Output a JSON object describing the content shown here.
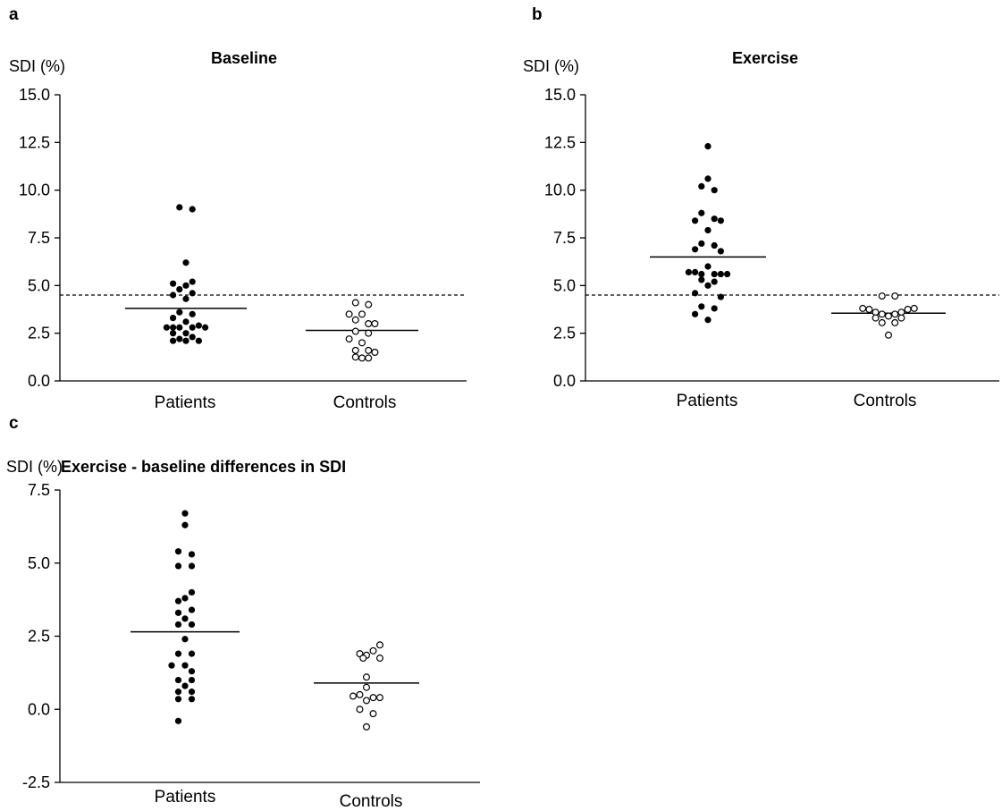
{
  "chart_data": [
    {
      "type": "scatter",
      "panel": "a",
      "title": "Baseline",
      "ylabel": "SDI (%)",
      "xlabel": "",
      "ylim": [
        0,
        15
      ],
      "yticks": [
        "0.0",
        "2.5",
        "5.0",
        "7.5",
        "10.0",
        "12.5",
        "15.0"
      ],
      "categories": [
        "Patients",
        "Controls"
      ],
      "reference_line": 4.5,
      "series": [
        {
          "category": "Patients",
          "marker": "filled",
          "mean": 3.8,
          "points": [
            {
              "off": -1,
              "y": 9.1
            },
            {
              "off": 1,
              "y": 9.0
            },
            {
              "off": 0,
              "y": 6.2
            },
            {
              "off": 1,
              "y": 5.2
            },
            {
              "off": -2,
              "y": 5.1
            },
            {
              "off": 0,
              "y": 5.0
            },
            {
              "off": -1,
              "y": 4.8
            },
            {
              "off": 1,
              "y": 4.6
            },
            {
              "off": -2,
              "y": 4.5
            },
            {
              "off": 0,
              "y": 4.3
            },
            {
              "off": -1,
              "y": 3.6
            },
            {
              "off": 1,
              "y": 3.5
            },
            {
              "off": -2,
              "y": 3.3
            },
            {
              "off": 0,
              "y": 3.1
            },
            {
              "off": 2,
              "y": 2.9
            },
            {
              "off": -3,
              "y": 2.8
            },
            {
              "off": -2,
              "y": 2.8
            },
            {
              "off": -1,
              "y": 2.8
            },
            {
              "off": 1,
              "y": 2.8
            },
            {
              "off": 3,
              "y": 2.8
            },
            {
              "off": -2,
              "y": 2.5
            },
            {
              "off": 0,
              "y": 2.5
            },
            {
              "off": 1,
              "y": 2.3
            },
            {
              "off": -1,
              "y": 2.2
            },
            {
              "off": -2,
              "y": 2.1
            },
            {
              "off": 0,
              "y": 2.1
            },
            {
              "off": 2,
              "y": 2.1
            }
          ]
        },
        {
          "category": "Controls",
          "marker": "open",
          "mean": 2.65,
          "points": [
            {
              "off": -1,
              "y": 4.1
            },
            {
              "off": 1,
              "y": 4.0
            },
            {
              "off": -2,
              "y": 3.5
            },
            {
              "off": 0,
              "y": 3.5
            },
            {
              "off": -1,
              "y": 3.2
            },
            {
              "off": 1,
              "y": 3.0
            },
            {
              "off": 2,
              "y": 3.0
            },
            {
              "off": -1,
              "y": 2.6
            },
            {
              "off": 1,
              "y": 2.5
            },
            {
              "off": -2,
              "y": 2.2
            },
            {
              "off": 0,
              "y": 2.0
            },
            {
              "off": -1,
              "y": 1.6
            },
            {
              "off": 1,
              "y": 1.6
            },
            {
              "off": 2,
              "y": 1.5
            },
            {
              "off": -1,
              "y": 1.25
            },
            {
              "off": 0,
              "y": 1.2
            },
            {
              "off": 1,
              "y": 1.2
            }
          ]
        }
      ]
    },
    {
      "type": "scatter",
      "panel": "b",
      "title": "Exercise",
      "ylabel": "SDI (%)",
      "xlabel": "",
      "ylim": [
        0,
        15
      ],
      "yticks": [
        "0.0",
        "2.5",
        "5.0",
        "7.5",
        "10.0",
        "12.5",
        "15.0"
      ],
      "categories": [
        "Patients",
        "Controls"
      ],
      "reference_line": 4.5,
      "series": [
        {
          "category": "Patients",
          "marker": "filled",
          "mean": 6.5,
          "points": [
            {
              "off": 0,
              "y": 12.3
            },
            {
              "off": 0,
              "y": 10.6
            },
            {
              "off": -1,
              "y": 10.2
            },
            {
              "off": 1,
              "y": 10.0
            },
            {
              "off": -1,
              "y": 8.8
            },
            {
              "off": -2,
              "y": 8.4
            },
            {
              "off": 1,
              "y": 8.5
            },
            {
              "off": 2,
              "y": 8.4
            },
            {
              "off": 0,
              "y": 7.9
            },
            {
              "off": -1,
              "y": 7.2
            },
            {
              "off": 1,
              "y": 7.1
            },
            {
              "off": -2,
              "y": 6.9
            },
            {
              "off": 2,
              "y": 6.8
            },
            {
              "off": 0,
              "y": 6.0
            },
            {
              "off": -3,
              "y": 5.7
            },
            {
              "off": -2,
              "y": 5.7
            },
            {
              "off": -1,
              "y": 5.6
            },
            {
              "off": 1,
              "y": 5.6
            },
            {
              "off": 2,
              "y": 5.6
            },
            {
              "off": 3,
              "y": 5.6
            },
            {
              "off": -1,
              "y": 5.3
            },
            {
              "off": 1,
              "y": 5.2
            },
            {
              "off": 0,
              "y": 5.0
            },
            {
              "off": -2,
              "y": 4.6
            },
            {
              "off": 2,
              "y": 4.4
            },
            {
              "off": -1,
              "y": 3.9
            },
            {
              "off": 1,
              "y": 3.8
            },
            {
              "off": -2,
              "y": 3.5
            },
            {
              "off": 0,
              "y": 3.2
            }
          ]
        },
        {
          "category": "Controls",
          "marker": "open",
          "mean": 3.55,
          "points": [
            {
              "off": -1,
              "y": 4.45
            },
            {
              "off": 1,
              "y": 4.45
            },
            {
              "off": -4,
              "y": 3.8
            },
            {
              "off": -3,
              "y": 3.75
            },
            {
              "off": 3,
              "y": 3.75
            },
            {
              "off": 4,
              "y": 3.8
            },
            {
              "off": -2,
              "y": 3.6
            },
            {
              "off": -1,
              "y": 3.5
            },
            {
              "off": 1,
              "y": 3.5
            },
            {
              "off": 2,
              "y": 3.6
            },
            {
              "off": -2,
              "y": 3.3
            },
            {
              "off": 0,
              "y": 3.4
            },
            {
              "off": 2,
              "y": 3.3
            },
            {
              "off": -1,
              "y": 3.05
            },
            {
              "off": 1,
              "y": 3.05
            },
            {
              "off": 0,
              "y": 2.4
            }
          ]
        }
      ]
    },
    {
      "type": "scatter",
      "panel": "c",
      "title": "Exercise - baseline differences in SDI",
      "ylabel": "SDI (%)",
      "xlabel": "",
      "ylim": [
        -2.5,
        7.5
      ],
      "yticks": [
        "-2.5",
        "0.0",
        "2.5",
        "5.0",
        "7.5"
      ],
      "categories": [
        "Patients",
        "Controls"
      ],
      "series": [
        {
          "category": "Patients",
          "marker": "filled",
          "mean": 2.65,
          "points": [
            {
              "off": 0,
              "y": 6.7
            },
            {
              "off": 0,
              "y": 6.3
            },
            {
              "off": -1,
              "y": 5.4
            },
            {
              "off": 1,
              "y": 5.3
            },
            {
              "off": -1,
              "y": 4.9
            },
            {
              "off": 1,
              "y": 4.9
            },
            {
              "off": 1,
              "y": 4.0
            },
            {
              "off": -1,
              "y": 3.7
            },
            {
              "off": 0,
              "y": 3.8
            },
            {
              "off": 1,
              "y": 3.4
            },
            {
              "off": -1,
              "y": 3.3
            },
            {
              "off": 0,
              "y": 3.1
            },
            {
              "off": -1,
              "y": 2.9
            },
            {
              "off": 1,
              "y": 2.9
            },
            {
              "off": 0,
              "y": 2.4
            },
            {
              "off": -1,
              "y": 1.9
            },
            {
              "off": 1,
              "y": 1.9
            },
            {
              "off": -2,
              "y": 1.5
            },
            {
              "off": 0,
              "y": 1.5
            },
            {
              "off": 1,
              "y": 1.3
            },
            {
              "off": -1,
              "y": 1.0
            },
            {
              "off": 1,
              "y": 1.0
            },
            {
              "off": 0,
              "y": 0.8
            },
            {
              "off": -1,
              "y": 0.6
            },
            {
              "off": 1,
              "y": 0.6
            },
            {
              "off": -1,
              "y": 0.35
            },
            {
              "off": 1,
              "y": 0.35
            },
            {
              "off": -1,
              "y": -0.4
            }
          ]
        },
        {
          "category": "Controls",
          "marker": "open",
          "mean": 0.9,
          "points": [
            {
              "off": 2,
              "y": 2.2
            },
            {
              "off": 1,
              "y": 2.0
            },
            {
              "off": -1,
              "y": 1.9
            },
            {
              "off": 0,
              "y": 1.85
            },
            {
              "off": -0.5,
              "y": 1.75
            },
            {
              "off": 2,
              "y": 1.75
            },
            {
              "off": 0,
              "y": 1.1
            },
            {
              "off": 0,
              "y": 0.75
            },
            {
              "off": -1,
              "y": 0.5
            },
            {
              "off": -2,
              "y": 0.45
            },
            {
              "off": 1,
              "y": 0.4
            },
            {
              "off": 2,
              "y": 0.4
            },
            {
              "off": 0,
              "y": 0.3
            },
            {
              "off": -1,
              "y": 0.0
            },
            {
              "off": 1,
              "y": -0.15
            },
            {
              "off": 0,
              "y": -0.6
            }
          ]
        }
      ]
    }
  ]
}
